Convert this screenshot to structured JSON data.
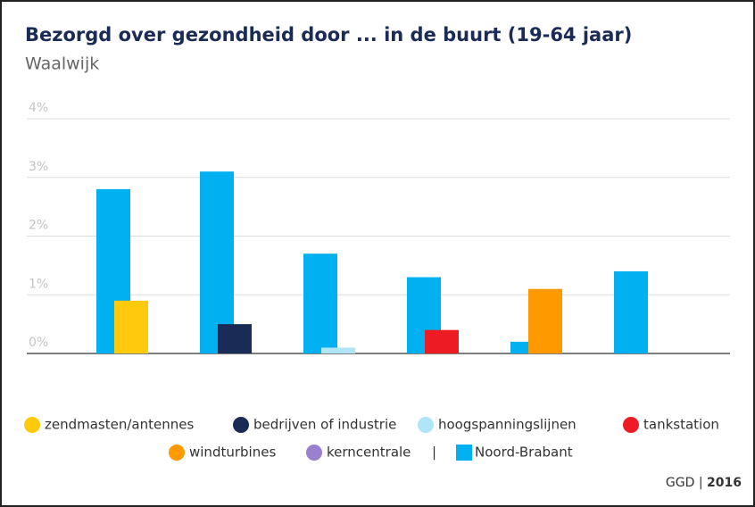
{
  "chart_data": {
    "type": "bar",
    "title": "Bezorgd over gezondheid door ... in de buurt (19-64 jaar)",
    "subtitle": "Waalwijk",
    "categories": [
      "zendmasten/antennes",
      "bedrijven of industrie",
      "hoogspanningslijnen",
      "tankstation",
      "windturbines",
      "kerncentrale"
    ],
    "category_colors": [
      "#ffc90e",
      "#1a2b55",
      "#b0e4f7",
      "#ed1c24",
      "#ff9900",
      "#9b7fcf"
    ],
    "values": [
      0.9,
      0.5,
      0.1,
      0.4,
      1.1,
      null
    ],
    "reference": {
      "name": "Noord-Brabant",
      "color": "#00b0f0",
      "values": [
        2.8,
        3.1,
        1.7,
        1.3,
        0.2,
        1.4
      ]
    },
    "legend_separator": "|",
    "ylim": [
      0,
      4
    ],
    "yticks": [
      {
        "value": 0,
        "label": "0%"
      },
      {
        "value": 1,
        "label": "1%"
      },
      {
        "value": 2,
        "label": "2%"
      },
      {
        "value": 3,
        "label": "3%"
      },
      {
        "value": 4,
        "label": "4%"
      }
    ],
    "grid": true,
    "source": {
      "name": "GGD",
      "separator": "|",
      "year": "2016"
    }
  }
}
